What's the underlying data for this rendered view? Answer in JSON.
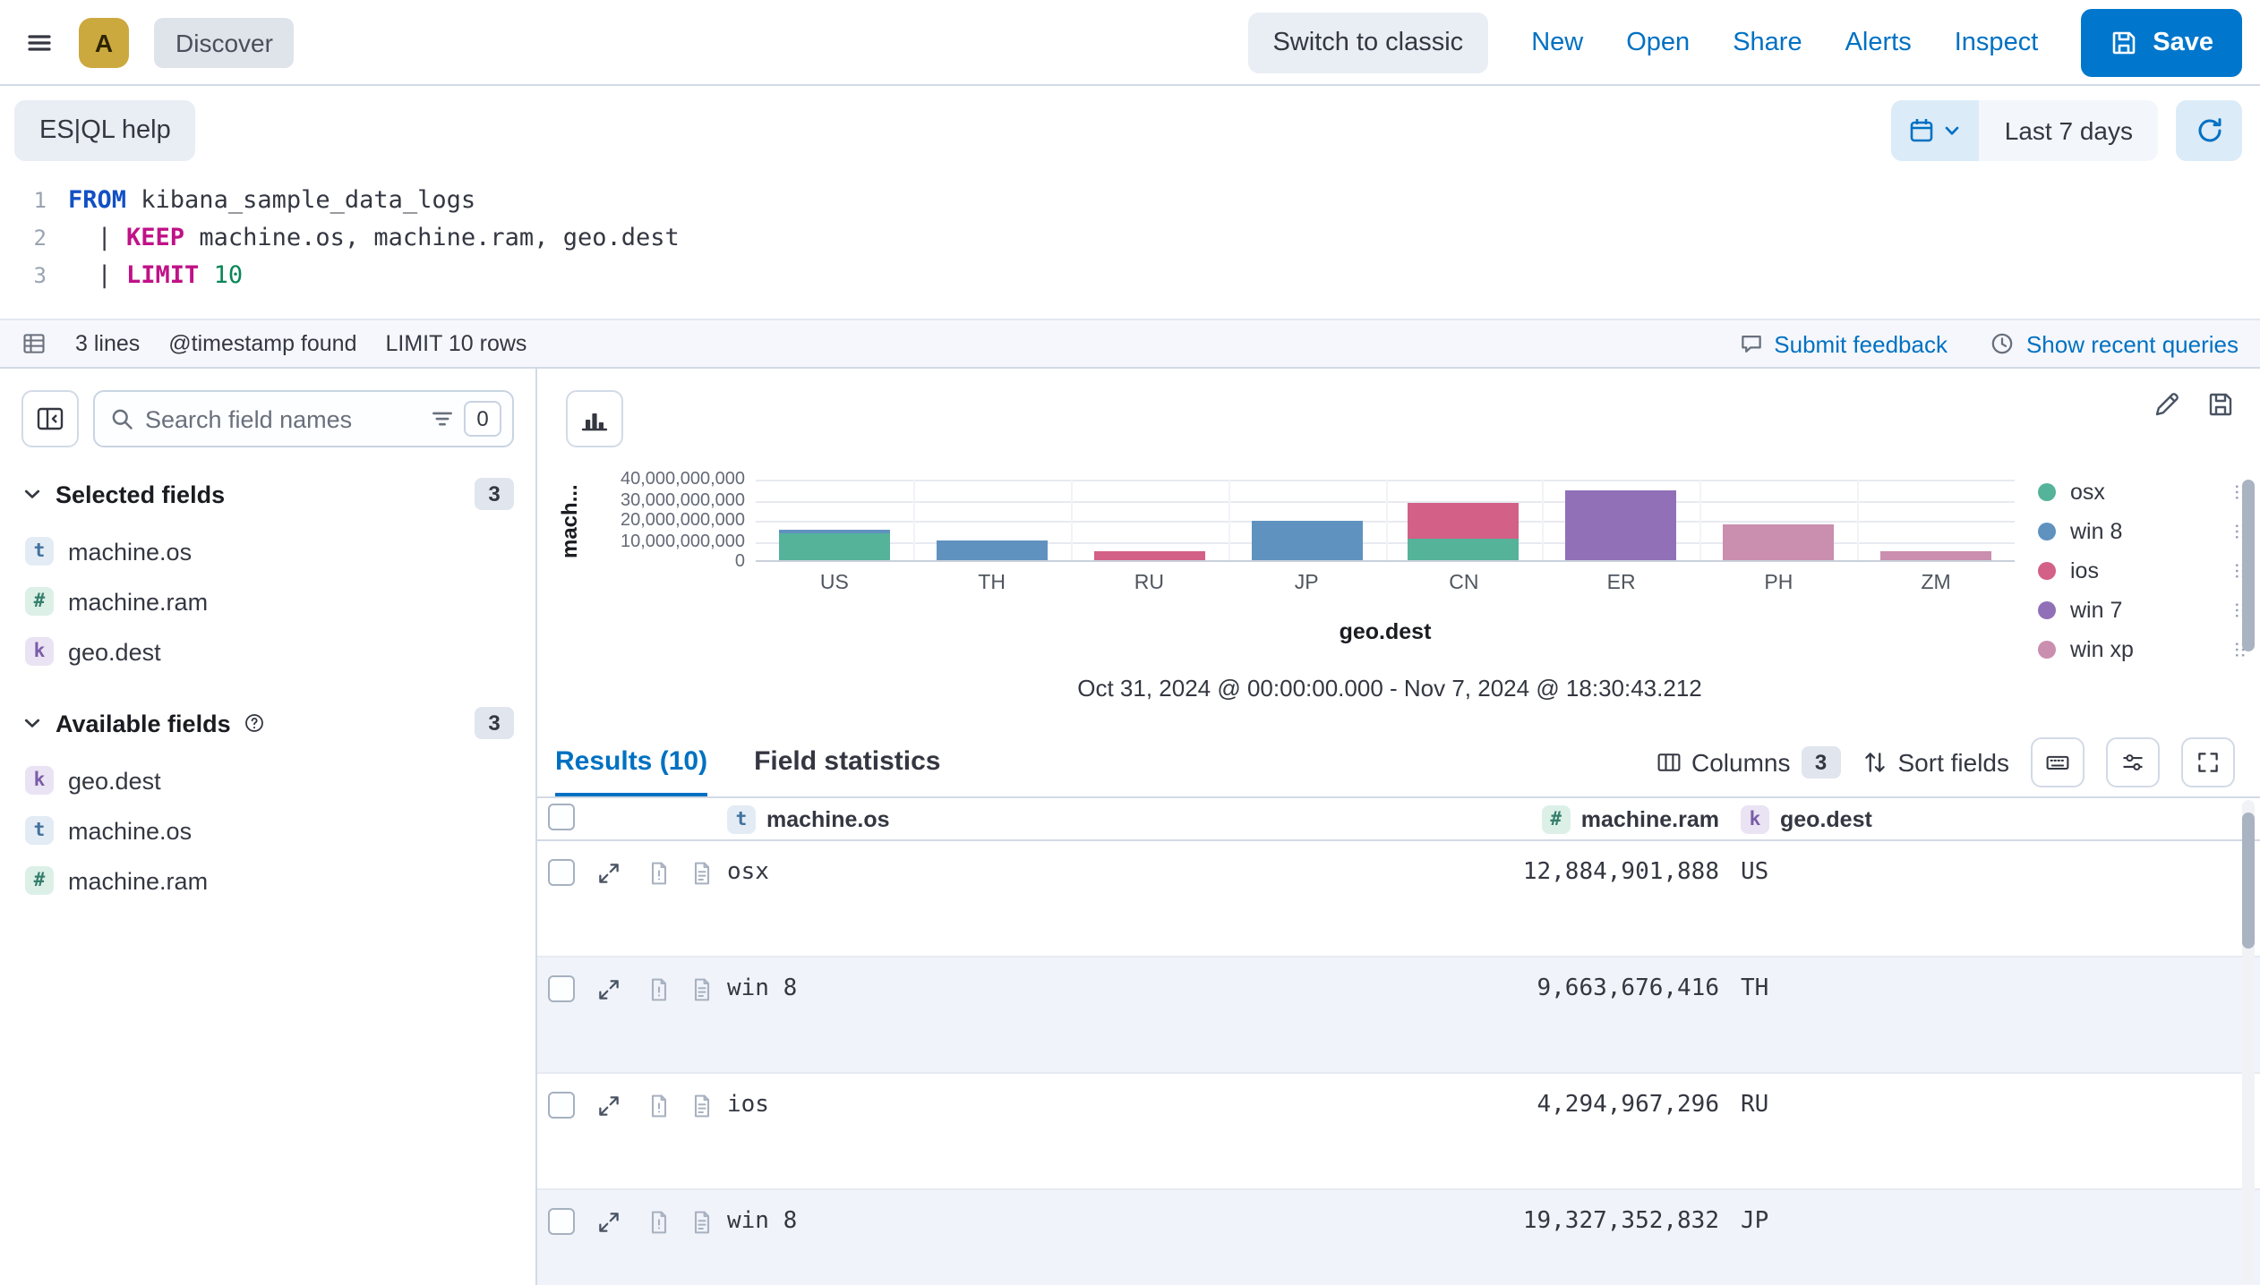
{
  "topbar": {
    "space_initial": "A",
    "breadcrumb": "Discover",
    "switch_classic": "Switch to classic",
    "links": [
      "New",
      "Open",
      "Share",
      "Alerts",
      "Inspect"
    ],
    "save_label": "Save"
  },
  "querybar": {
    "help_label": "ES|QL help",
    "time_range": "Last 7 days"
  },
  "editor": {
    "lines": [
      {
        "num": "1",
        "tokens": [
          {
            "t": "FROM",
            "c": "kw1"
          },
          {
            "t": " kibana_sample_data_logs",
            "c": "plain"
          }
        ]
      },
      {
        "num": "2",
        "tokens": [
          {
            "t": "  | ",
            "c": "plain"
          },
          {
            "t": "KEEP",
            "c": "kw2"
          },
          {
            "t": " machine.os, machine.ram, geo.dest",
            "c": "plain"
          }
        ]
      },
      {
        "num": "3",
        "tokens": [
          {
            "t": "  | ",
            "c": "plain"
          },
          {
            "t": "LIMIT",
            "c": "kw2"
          },
          {
            "t": " ",
            "c": "plain"
          },
          {
            "t": "10",
            "c": "num"
          }
        ]
      }
    ],
    "footer": {
      "lines_count": "3 lines",
      "timestamp_info": "@timestamp found",
      "limit_info": "LIMIT 10 rows",
      "feedback_label": "Submit feedback",
      "recent_queries_label": "Show recent queries"
    }
  },
  "sidebar": {
    "search_placeholder": "Search field names",
    "filter_count": "0",
    "selected_fields": {
      "label": "Selected fields",
      "count": "3",
      "fields": [
        {
          "name": "machine.os",
          "type": "text"
        },
        {
          "name": "machine.ram",
          "type": "number"
        },
        {
          "name": "geo.dest",
          "type": "keyword"
        }
      ]
    },
    "available_fields": {
      "label": "Available fields",
      "count": "3",
      "fields": [
        {
          "name": "geo.dest",
          "type": "keyword"
        },
        {
          "name": "machine.os",
          "type": "text"
        },
        {
          "name": "machine.ram",
          "type": "number"
        }
      ]
    }
  },
  "chart_data": {
    "type": "bar",
    "stacked": true,
    "categories": [
      "US",
      "TH",
      "RU",
      "JP",
      "CN",
      "ER",
      "PH",
      "ZM"
    ],
    "series": [
      {
        "name": "osx",
        "color": "#54B399",
        "values": [
          12884901888,
          0,
          0,
          0,
          10737418240,
          0,
          0,
          0
        ]
      },
      {
        "name": "win 8",
        "color": "#6092C0",
        "values": [
          2147483648,
          9663676416,
          0,
          19327352832,
          0,
          0,
          0,
          0
        ]
      },
      {
        "name": "ios",
        "color": "#D36086",
        "values": [
          0,
          0,
          4294967296,
          0,
          17179869184,
          0,
          0,
          0
        ]
      },
      {
        "name": "win 7",
        "color": "#9170B8",
        "values": [
          0,
          0,
          0,
          0,
          0,
          34359738368,
          0,
          0
        ]
      },
      {
        "name": "win xp",
        "color": "#CA8EAE",
        "values": [
          0,
          0,
          0,
          0,
          0,
          0,
          17179869184,
          4294967296
        ]
      }
    ],
    "xlabel": "geo.dest",
    "ylabel": "mach...",
    "ylim": [
      0,
      40000000000
    ],
    "yticks": [
      0,
      10000000000,
      20000000000,
      30000000000,
      40000000000
    ],
    "ytick_labels": [
      "0",
      "10,000,000,000",
      "20,000,000,000",
      "30,000,000,000",
      "40,000,000,000"
    ],
    "legend_position": "right",
    "grid": true,
    "time_range": "Oct 31, 2024 @ 00:00:00.000 - Nov 7, 2024 @ 18:30:43.212"
  },
  "results": {
    "tabs": [
      {
        "label": "Results (10)"
      },
      {
        "label": "Field statistics"
      }
    ],
    "columns_label": "Columns",
    "columns_count": "3",
    "sort_label": "Sort fields",
    "columns": [
      {
        "name": "machine.os",
        "type": "text"
      },
      {
        "name": "machine.ram",
        "type": "number"
      },
      {
        "name": "geo.dest",
        "type": "keyword"
      }
    ],
    "rows": [
      [
        "osx",
        "12,884,901,888",
        "US"
      ],
      [
        "win 8",
        "9,663,676,416",
        "TH"
      ],
      [
        "ios",
        "4,294,967,296",
        "RU"
      ],
      [
        "win 8",
        "19,327,352,832",
        "JP"
      ]
    ]
  }
}
